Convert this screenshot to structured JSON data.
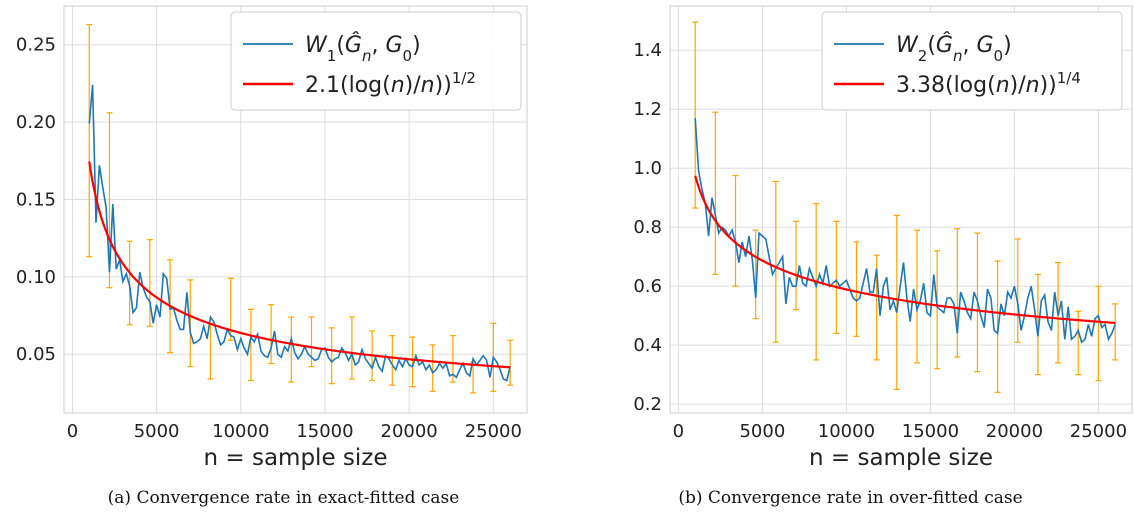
{
  "chart_data": [
    {
      "type": "line",
      "caption_label": "(a)",
      "caption": "Convergence rate in exact-fitted case",
      "xlabel": "n = sample size",
      "ylabel": "",
      "xlim": [
        -500,
        27000
      ],
      "ylim": [
        0.012,
        0.275
      ],
      "x_ticks": [
        0,
        5000,
        10000,
        15000,
        20000,
        25000
      ],
      "x_tick_labels": [
        "0",
        "5000",
        "10000",
        "15000",
        "20000",
        "25000"
      ],
      "y_ticks": [
        0.05,
        0.1,
        0.15,
        0.2,
        0.25
      ],
      "y_tick_labels": [
        "0.05",
        "0.10",
        "0.15",
        "0.20",
        "0.25"
      ],
      "grid": true,
      "legend_position": "top-right",
      "series": [
        {
          "name": "W₁(Ĝₙ, G₀)",
          "color": "#1f77b4",
          "x": [
            1000,
            1200,
            1400,
            1600,
            1800,
            2000,
            2200,
            2400,
            2600,
            2800,
            3000,
            3200,
            3400,
            3600,
            3800,
            4000,
            4200,
            4400,
            4600,
            4800,
            5000,
            5200,
            5400,
            5600,
            5800,
            6000,
            6200,
            6400,
            6600,
            6800,
            7000,
            7200,
            7400,
            7600,
            7800,
            8000,
            8200,
            8400,
            8600,
            8800,
            9000,
            9200,
            9400,
            9600,
            9800,
            10000,
            10200,
            10400,
            10600,
            10800,
            11000,
            11200,
            11400,
            11600,
            11800,
            12000,
            12200,
            12400,
            12600,
            12800,
            13000,
            13200,
            13400,
            13600,
            13800,
            14000,
            14200,
            14400,
            14600,
            14800,
            15000,
            15200,
            15400,
            15600,
            15800,
            16000,
            16200,
            16400,
            16600,
            16800,
            17000,
            17200,
            17400,
            17600,
            17800,
            18000,
            18200,
            18400,
            18600,
            18800,
            19000,
            19200,
            19400,
            19600,
            19800,
            20000,
            20200,
            20400,
            20600,
            20800,
            21000,
            21200,
            21400,
            21600,
            21800,
            22000,
            22200,
            22400,
            22600,
            22800,
            23000,
            23200,
            23400,
            23600,
            23800,
            24000,
            24200,
            24400,
            24600,
            24800,
            25000,
            25200,
            25400,
            25600,
            25800,
            26000
          ],
          "values": [
            0.199,
            0.224,
            0.135,
            0.172,
            0.158,
            0.145,
            0.103,
            0.147,
            0.105,
            0.111,
            0.097,
            0.102,
            0.094,
            0.077,
            0.08,
            0.103,
            0.093,
            0.087,
            0.084,
            0.07,
            0.082,
            0.074,
            0.102,
            0.099,
            0.079,
            0.08,
            0.072,
            0.066,
            0.066,
            0.09,
            0.064,
            0.057,
            0.058,
            0.06,
            0.068,
            0.06,
            0.074,
            0.071,
            0.063,
            0.056,
            0.058,
            0.066,
            0.062,
            0.061,
            0.053,
            0.06,
            0.054,
            0.05,
            0.061,
            0.058,
            0.063,
            0.052,
            0.049,
            0.048,
            0.054,
            0.065,
            0.05,
            0.048,
            0.055,
            0.052,
            0.06,
            0.051,
            0.047,
            0.05,
            0.055,
            0.05,
            0.048,
            0.046,
            0.047,
            0.053,
            0.054,
            0.048,
            0.045,
            0.047,
            0.048,
            0.054,
            0.051,
            0.046,
            0.05,
            0.043,
            0.045,
            0.053,
            0.047,
            0.044,
            0.041,
            0.048,
            0.042,
            0.039,
            0.049,
            0.047,
            0.043,
            0.04,
            0.046,
            0.042,
            0.047,
            0.043,
            0.042,
            0.049,
            0.043,
            0.045,
            0.04,
            0.043,
            0.038,
            0.04,
            0.044,
            0.041,
            0.044,
            0.036,
            0.037,
            0.035,
            0.04,
            0.044,
            0.038,
            0.036,
            0.047,
            0.043,
            0.046,
            0.049,
            0.046,
            0.035,
            0.048,
            0.045,
            0.04,
            0.034,
            0.033,
            0.042
          ]
        },
        {
          "name": "2.1(log(n)/n))^1/2",
          "color": "#ff0000",
          "function": "2.1*sqrt(log(n)/n)",
          "x_range": [
            1000,
            26000
          ]
        }
      ],
      "error_bars": {
        "color": "#ffa500",
        "x": [
          1000,
          2200,
          3400,
          4600,
          5800,
          7000,
          8200,
          9400,
          10600,
          11800,
          13000,
          14200,
          15400,
          16600,
          17800,
          19000,
          20200,
          21400,
          22600,
          23800,
          25000,
          26000
        ],
        "y": [
          0.188,
          0.149,
          0.096,
          0.094,
          0.081,
          0.07,
          0.052,
          0.079,
          0.056,
          0.063,
          0.053,
          0.058,
          0.049,
          0.054,
          0.049,
          0.046,
          0.045,
          0.041,
          0.047,
          0.035,
          0.048,
          0.045
        ],
        "lower": [
          0.113,
          0.093,
          0.069,
          0.068,
          0.051,
          0.042,
          0.034,
          0.059,
          0.033,
          0.044,
          0.032,
          0.042,
          0.031,
          0.034,
          0.033,
          0.03,
          0.029,
          0.026,
          0.032,
          0.025,
          0.026,
          0.03
        ],
        "upper": [
          0.263,
          0.206,
          0.123,
          0.124,
          0.111,
          0.098,
          0.07,
          0.099,
          0.079,
          0.082,
          0.074,
          0.074,
          0.067,
          0.074,
          0.065,
          0.062,
          0.061,
          0.056,
          0.062,
          0.045,
          0.07,
          0.059
        ]
      }
    },
    {
      "type": "line",
      "caption_label": "(b)",
      "caption": "Convergence rate in over-fitted case",
      "xlabel": "n = sample size",
      "ylabel": "",
      "xlim": [
        -500,
        27000
      ],
      "ylim": [
        0.17,
        1.55
      ],
      "x_ticks": [
        0,
        5000,
        10000,
        15000,
        20000,
        25000
      ],
      "x_tick_labels": [
        "0",
        "5000",
        "10000",
        "15000",
        "20000",
        "25000"
      ],
      "y_ticks": [
        0.2,
        0.4,
        0.6,
        0.8,
        1.0,
        1.2,
        1.4
      ],
      "y_tick_labels": [
        "0.2",
        "0.4",
        "0.6",
        "0.8",
        "1.0",
        "1.2",
        "1.4"
      ],
      "grid": true,
      "legend_position": "top-right",
      "series": [
        {
          "name": "W₂(Ĝₙ, G₀)",
          "color": "#1f77b4",
          "x": [
            1000,
            1200,
            1400,
            1600,
            1800,
            2000,
            2200,
            2400,
            2600,
            2800,
            3000,
            3200,
            3400,
            3600,
            3800,
            4000,
            4200,
            4400,
            4600,
            4800,
            5000,
            5200,
            5400,
            5600,
            5800,
            6000,
            6200,
            6400,
            6600,
            6800,
            7000,
            7200,
            7400,
            7600,
            7800,
            8000,
            8200,
            8400,
            8600,
            8800,
            9000,
            9200,
            9400,
            9600,
            9800,
            10000,
            10200,
            10400,
            10600,
            10800,
            11000,
            11200,
            11400,
            11600,
            11800,
            12000,
            12200,
            12400,
            12600,
            12800,
            13000,
            13200,
            13400,
            13600,
            13800,
            14000,
            14200,
            14400,
            14600,
            14800,
            15000,
            15200,
            15400,
            15600,
            15800,
            16000,
            16200,
            16400,
            16600,
            16800,
            17000,
            17200,
            17400,
            17600,
            17800,
            18000,
            18200,
            18400,
            18600,
            18800,
            19000,
            19200,
            19400,
            19600,
            19800,
            20000,
            20200,
            20400,
            20600,
            20800,
            21000,
            21200,
            21400,
            21600,
            21800,
            22000,
            22200,
            22400,
            22600,
            22800,
            23000,
            23200,
            23400,
            23600,
            23800,
            24000,
            24200,
            24400,
            24600,
            24800,
            25000,
            25200,
            25400,
            25600,
            25800,
            26000
          ],
          "values": [
            1.17,
            0.99,
            0.93,
            0.88,
            0.77,
            0.9,
            0.84,
            0.78,
            0.8,
            0.79,
            0.77,
            0.79,
            0.75,
            0.68,
            0.75,
            0.7,
            0.77,
            0.69,
            0.56,
            0.78,
            0.77,
            0.76,
            0.7,
            0.64,
            0.66,
            0.68,
            0.7,
            0.54,
            0.63,
            0.6,
            0.6,
            0.67,
            0.61,
            0.6,
            0.66,
            0.63,
            0.6,
            0.64,
            0.61,
            0.67,
            0.6,
            0.61,
            0.62,
            0.6,
            0.61,
            0.62,
            0.59,
            0.56,
            0.55,
            0.56,
            0.61,
            0.66,
            0.58,
            0.58,
            0.66,
            0.5,
            0.6,
            0.63,
            0.52,
            0.55,
            0.51,
            0.6,
            0.68,
            0.56,
            0.48,
            0.59,
            0.52,
            0.55,
            0.61,
            0.51,
            0.5,
            0.64,
            0.53,
            0.52,
            0.51,
            0.56,
            0.56,
            0.54,
            0.44,
            0.58,
            0.55,
            0.51,
            0.49,
            0.58,
            0.55,
            0.5,
            0.46,
            0.59,
            0.56,
            0.45,
            0.44,
            0.54,
            0.5,
            0.58,
            0.56,
            0.6,
            0.54,
            0.45,
            0.5,
            0.56,
            0.6,
            0.52,
            0.43,
            0.55,
            0.57,
            0.48,
            0.45,
            0.58,
            0.5,
            0.55,
            0.42,
            0.53,
            0.42,
            0.43,
            0.45,
            0.41,
            0.42,
            0.47,
            0.43,
            0.49,
            0.5,
            0.46,
            0.47,
            0.42,
            0.44,
            0.47
          ]
        },
        {
          "name": "3.38(log(n)/n))^1/4",
          "color": "#ff0000",
          "function": "3.38*pow(log(n)/n,0.25)",
          "x_range": [
            1000,
            26000
          ]
        }
      ],
      "error_bars": {
        "color": "#ffa500",
        "x": [
          1000,
          2200,
          3400,
          4600,
          5800,
          7000,
          8200,
          9400,
          10600,
          11800,
          13000,
          14200,
          15400,
          16600,
          17800,
          19000,
          20200,
          21400,
          22600,
          23800,
          25000,
          26000
        ],
        "y": [
          1.18,
          0.91,
          0.79,
          0.64,
          0.68,
          0.6,
          0.62,
          0.63,
          0.59,
          0.53,
          0.55,
          0.56,
          0.52,
          0.55,
          0.55,
          0.49,
          0.58,
          0.47,
          0.49,
          0.41,
          0.44,
          0.45
        ],
        "lower": [
          0.865,
          0.64,
          0.6,
          0.49,
          0.41,
          0.52,
          0.35,
          0.44,
          0.43,
          0.35,
          0.25,
          0.34,
          0.32,
          0.36,
          0.31,
          0.24,
          0.41,
          0.3,
          0.34,
          0.3,
          0.28,
          0.35
        ],
        "upper": [
          1.495,
          1.19,
          0.975,
          0.79,
          0.955,
          0.82,
          0.88,
          0.82,
          0.75,
          0.705,
          0.84,
          0.79,
          0.72,
          0.795,
          0.78,
          0.685,
          0.76,
          0.64,
          0.68,
          0.515,
          0.6,
          0.54
        ]
      }
    }
  ]
}
